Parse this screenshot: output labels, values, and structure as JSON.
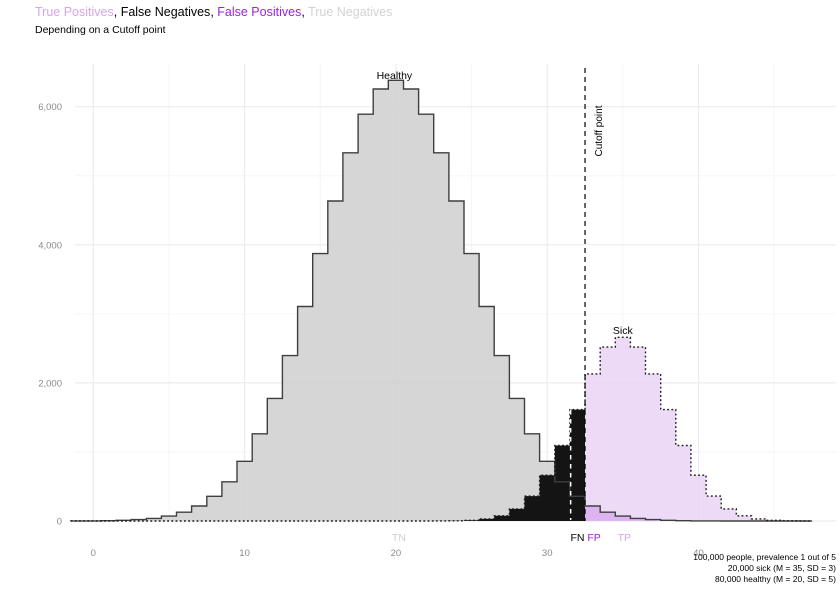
{
  "header": {
    "title_segments": [
      {
        "text": "True Positives",
        "color": "#D5A6EC"
      },
      {
        "text": ", ",
        "color": "#000000"
      },
      {
        "text": "False Negatives",
        "color": "#000000"
      },
      {
        "text": ", ",
        "color": "#000000"
      },
      {
        "text": "False Positives",
        "color": "#9A23DD"
      },
      {
        "text": ", ",
        "color": "#000000"
      },
      {
        "text": "True Negatives",
        "color": "#D2D2D2"
      }
    ],
    "subtitle": "Depending on a Cutoff point"
  },
  "caption": {
    "lines": [
      "100,000 people, prevalence 1 out of 5",
      "20,000 sick (M = 35, SD = 3)",
      "80,000 healthy (M = 20, SD = 5)"
    ]
  },
  "chart_data": {
    "type": "bar",
    "title": "True Positives, False Negatives, False Positives, True Negatives",
    "subtitle": "Depending on a Cutoff point",
    "xlabel": "",
    "ylabel": "",
    "xlim": [
      -3.5,
      49
    ],
    "ylim": [
      0,
      6600
    ],
    "grid": "major+minor",
    "legend_position": "none",
    "x_ticks": [
      0,
      10,
      20,
      30,
      40
    ],
    "x_tick_labels": [
      "0",
      "10",
      "20",
      "30",
      "40"
    ],
    "x_minor_ticks": [
      5,
      15,
      25,
      35,
      45
    ],
    "y_ticks": [
      0,
      2000,
      4000,
      6000
    ],
    "y_tick_labels": [
      "0",
      "2,000",
      "4,000",
      "6,000"
    ],
    "y_minor_ticks": [
      1000,
      3000,
      5000
    ],
    "bin_width": 1,
    "bin_centers": [
      -1,
      0,
      1,
      2,
      3,
      4,
      5,
      6,
      7,
      8,
      9,
      10,
      11,
      12,
      13,
      14,
      15,
      16,
      17,
      18,
      19,
      20,
      21,
      22,
      23,
      24,
      25,
      26,
      27,
      28,
      29,
      30,
      31,
      32,
      33,
      34,
      35,
      36,
      37,
      38,
      39,
      40,
      41,
      42,
      43,
      44,
      45,
      46,
      47
    ],
    "series": [
      {
        "name": "Healthy",
        "n": 80000,
        "mean": 20,
        "sd": 5,
        "values": [
          1,
          2,
          5,
          10,
          20,
          38,
          71,
          127,
          217,
          358,
          568,
          864,
          1263,
          1775,
          2396,
          3107,
          3872,
          4635,
          5332,
          5892,
          6257,
          6383,
          6257,
          5892,
          5332,
          4635,
          3872,
          3107,
          2396,
          1775,
          1263,
          864,
          568,
          358,
          217,
          127,
          71,
          38,
          20,
          10,
          5,
          2,
          1,
          0,
          0,
          0,
          0,
          0,
          0
        ]
      },
      {
        "name": "Sick",
        "n": 20000,
        "mean": 35,
        "sd": 3,
        "values": [
          0,
          0,
          0,
          0,
          0,
          0,
          0,
          0,
          0,
          0,
          0,
          0,
          0,
          0,
          0,
          0,
          0,
          0,
          0,
          0,
          0,
          0,
          0,
          0,
          1,
          3,
          10,
          30,
          76,
          175,
          360,
          663,
          1093,
          1613,
          2130,
          2519,
          2660,
          2519,
          2130,
          1613,
          1093,
          663,
          360,
          175,
          76,
          30,
          10,
          3,
          1
        ]
      }
    ],
    "cutoff": 32.5,
    "cutoff_label": "Cutoff point",
    "cutoff_marker_x": 31.55,
    "annotations": [
      {
        "text": "Healthy",
        "x": 19.9,
        "y": 6400
      },
      {
        "text": "Sick",
        "x": 35.0,
        "y": 2710
      }
    ],
    "region_labels": [
      {
        "code": "TN",
        "x": 20.2,
        "color": "#CFCFCF"
      },
      {
        "code": "FN",
        "x": 32.0,
        "color": "#000000"
      },
      {
        "code": "FP",
        "x": 33.1,
        "color": "#9A23DD"
      },
      {
        "code": "TP",
        "x": 35.1,
        "color": "#D5A6EC"
      }
    ],
    "colors": {
      "tn_fill": "#D2D2D2",
      "fn_fill": "#141414",
      "fp_fill": "#9303DB",
      "tp_fill": "#E9D4F4",
      "healthy_outline": "#3F3F3F",
      "sick_outline": "#1A1A1A",
      "cutoff_line": "#000000",
      "cutoff_inner_marker": "#FFFFFF",
      "axis_text": "#8A8A8A",
      "grid_major": "#ECECEC",
      "grid_minor": "#F6F6F6"
    }
  }
}
